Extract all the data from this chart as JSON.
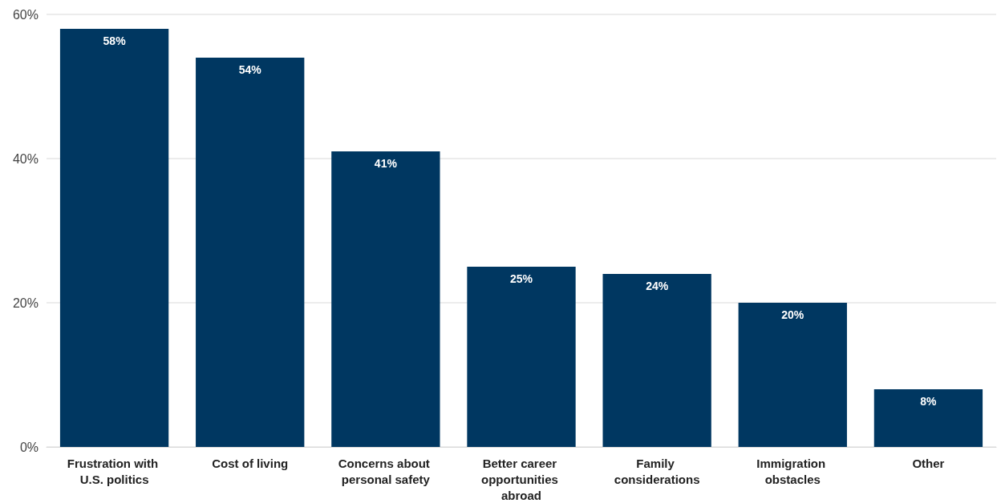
{
  "chart_data": {
    "type": "bar",
    "categories": [
      "Frustration with U.S. politics",
      "Cost of living",
      "Concerns about personal safety",
      "Better career opportunities abroad",
      "Family considerations",
      "Immigration obstacles",
      "Other"
    ],
    "values": [
      58,
      54,
      41,
      25,
      24,
      20,
      8
    ],
    "value_labels": [
      "58%",
      "54%",
      "41%",
      "25%",
      "24%",
      "20%",
      "8%"
    ],
    "color": "#003761",
    "ylim": [
      0,
      60
    ],
    "yticks": [
      {
        "value": 0,
        "label": "0%"
      },
      {
        "value": 20,
        "label": "20%"
      },
      {
        "value": 40,
        "label": "40%"
      },
      {
        "value": 60,
        "label": "60%"
      }
    ],
    "grid": "y"
  }
}
